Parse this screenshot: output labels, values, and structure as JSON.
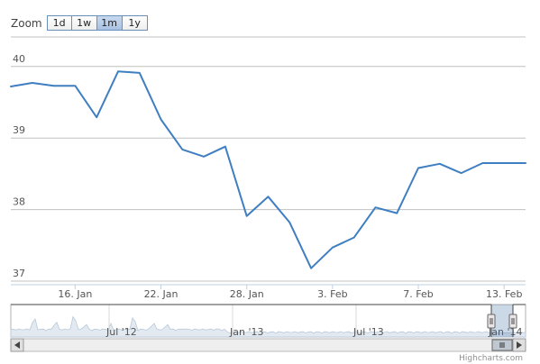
{
  "zoom": {
    "label": "Zoom",
    "buttons": [
      "1d",
      "1w",
      "1m",
      "1y"
    ],
    "selected": "1m"
  },
  "chart_data": {
    "type": "line",
    "title": "",
    "xlabel": "",
    "ylabel": "",
    "ylim": [
      36.95,
      40.4
    ],
    "yticks": [
      37,
      38,
      39,
      40
    ],
    "xticks": [
      "16. Jan",
      "22. Jan",
      "28. Jan",
      "3. Feb",
      "7. Feb",
      "13. Feb"
    ],
    "grid": true,
    "series": [
      {
        "color": "#3f7fc1",
        "x": [
          "13. Jan",
          "14. Jan",
          "15. Jan",
          "16. Jan",
          "17. Jan",
          "20. Jan",
          "21. Jan",
          "22. Jan",
          "23. Jan",
          "24. Jan",
          "27. Jan",
          "28. Jan",
          "29. Jan",
          "30. Jan",
          "31. Jan",
          "3. Feb",
          "4. Feb",
          "5. Feb",
          "6. Feb",
          "7. Feb",
          "10. Feb",
          "11. Feb",
          "12. Feb",
          "13. Feb",
          "14. Feb"
        ],
        "values": [
          39.72,
          39.77,
          39.73,
          39.73,
          39.29,
          39.93,
          39.91,
          39.26,
          38.84,
          38.74,
          38.88,
          37.91,
          38.18,
          37.82,
          37.18,
          37.47,
          37.61,
          38.03,
          37.95,
          38.58,
          38.64,
          38.51,
          38.65,
          38.65,
          38.65
        ]
      }
    ],
    "navigator": {
      "labels": [
        "Jul '12",
        "Jan '13",
        "Jul '13",
        "Jan '14"
      ]
    },
    "credits": "Highcharts.com"
  }
}
